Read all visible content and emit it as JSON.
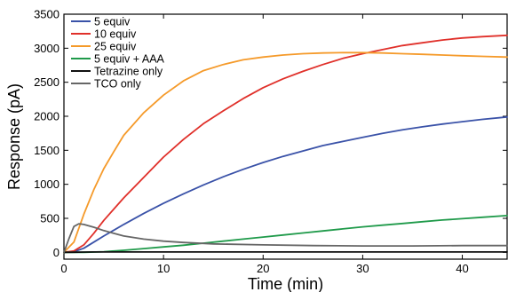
{
  "chart_data": {
    "type": "line",
    "title": "",
    "xlabel": "Time (min)",
    "ylabel": "Response (pA)",
    "xlim": [
      0,
      44.5
    ],
    "ylim": [
      -100,
      3500
    ],
    "x_ticks": [
      0,
      10,
      20,
      30,
      40
    ],
    "y_ticks": [
      0,
      500,
      1000,
      1500,
      2000,
      2500,
      3000,
      3500
    ],
    "grid": false,
    "legend_position": "top-left",
    "series": [
      {
        "name": "5 equiv",
        "color": "#3a52a8",
        "x": [
          0,
          1,
          2,
          3,
          4,
          6,
          8,
          10,
          12,
          14,
          16,
          18,
          20,
          22,
          24,
          26,
          28,
          30,
          32,
          34,
          36,
          38,
          40,
          42,
          44.5
        ],
        "y": [
          0,
          10,
          60,
          150,
          240,
          410,
          570,
          720,
          860,
          990,
          1110,
          1220,
          1320,
          1410,
          1490,
          1570,
          1630,
          1690,
          1750,
          1800,
          1845,
          1885,
          1920,
          1955,
          1990
        ]
      },
      {
        "name": "10 equiv",
        "color": "#e0302a",
        "x": [
          0,
          1,
          2,
          3,
          4,
          6,
          8,
          10,
          12,
          14,
          16,
          18,
          20,
          22,
          24,
          26,
          28,
          30,
          32,
          34,
          36,
          38,
          40,
          42,
          44.5
        ],
        "y": [
          0,
          20,
          110,
          280,
          470,
          800,
          1100,
          1400,
          1660,
          1890,
          2080,
          2260,
          2420,
          2550,
          2660,
          2760,
          2850,
          2920,
          2980,
          3040,
          3080,
          3120,
          3150,
          3170,
          3190
        ]
      },
      {
        "name": "25 equiv",
        "color": "#f59a2a",
        "x": [
          0,
          1,
          2,
          3,
          4,
          5,
          6,
          8,
          10,
          12,
          14,
          16,
          18,
          20,
          22,
          24,
          26,
          28,
          30,
          32,
          34,
          36,
          38,
          40,
          42,
          44.5
        ],
        "y": [
          0,
          150,
          560,
          920,
          1230,
          1480,
          1720,
          2050,
          2310,
          2520,
          2670,
          2760,
          2830,
          2870,
          2900,
          2920,
          2930,
          2935,
          2935,
          2930,
          2920,
          2910,
          2900,
          2890,
          2880,
          2870
        ]
      },
      {
        "name": "5 equiv + AAA",
        "color": "#1f9a4a",
        "x": [
          0,
          2,
          4,
          6,
          8,
          10,
          12,
          14,
          16,
          18,
          20,
          22,
          24,
          26,
          28,
          30,
          32,
          34,
          36,
          38,
          40,
          42,
          44.5
        ],
        "y": [
          0,
          0,
          10,
          30,
          55,
          80,
          105,
          135,
          165,
          195,
          225,
          255,
          285,
          315,
          345,
          375,
          400,
          425,
          450,
          475,
          495,
          515,
          540
        ]
      },
      {
        "name": "Tetrazine only",
        "color": "#111111",
        "x": [
          0,
          1,
          2,
          3,
          5,
          10,
          20,
          30,
          40,
          44.5
        ],
        "y": [
          0,
          2,
          4,
          5,
          5,
          5,
          5,
          5,
          5,
          5
        ]
      },
      {
        "name": "TCO only",
        "color": "#666666",
        "x": [
          0,
          0.5,
          1,
          1.5,
          2,
          3,
          4,
          5,
          6,
          8,
          10,
          12,
          15,
          20,
          25,
          30,
          35,
          40,
          44.5
        ],
        "y": [
          0,
          200,
          380,
          420,
          410,
          370,
          320,
          280,
          240,
          195,
          165,
          145,
          125,
          110,
          100,
          95,
          95,
          100,
          100
        ]
      }
    ]
  }
}
